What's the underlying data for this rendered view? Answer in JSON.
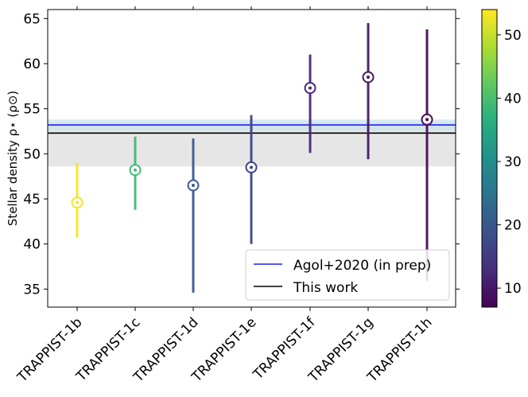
{
  "chart_data": {
    "type": "scatter",
    "title": "",
    "xlabel": "",
    "ylabel": "Stellar density ρ⋆ (ρ⊙)",
    "ylim": [
      33,
      66
    ],
    "yticks": [
      35,
      40,
      45,
      50,
      55,
      60,
      65
    ],
    "categories": [
      "TRAPPIST-1b",
      "TRAPPIST-1c",
      "TRAPPIST-1d",
      "TRAPPIST-1e",
      "TRAPPIST-1f",
      "TRAPPIST-1g",
      "TRAPPIST-1h"
    ],
    "points": [
      {
        "label": "TRAPPIST-1b",
        "y": 44.6,
        "lo": 40.7,
        "hi": 49.0,
        "c": 53,
        "color": "#f5e61f"
      },
      {
        "label": "TRAPPIST-1c",
        "y": 48.2,
        "lo": 43.8,
        "hi": 51.9,
        "c": 36,
        "color": "#3fbc73"
      },
      {
        "label": "TRAPPIST-1d",
        "y": 46.5,
        "lo": 34.6,
        "hi": 51.7,
        "c": 19,
        "color": "#3b5a8f"
      },
      {
        "label": "TRAPPIST-1e",
        "y": 48.5,
        "lo": 40.0,
        "hi": 54.3,
        "c": 17,
        "color": "#3d4486"
      },
      {
        "label": "TRAPPIST-1f",
        "y": 57.3,
        "lo": 50.1,
        "hi": 61.0,
        "c": 12,
        "color": "#482878"
      },
      {
        "label": "TRAPPIST-1g",
        "y": 58.5,
        "lo": 49.4,
        "hi": 64.5,
        "c": 10,
        "color": "#46195f"
      },
      {
        "label": "TRAPPIST-1h",
        "y": 53.8,
        "lo": 35.9,
        "hi": 63.8,
        "c": 8,
        "color": "#440d55"
      }
    ],
    "reference_lines": [
      {
        "name": "Agol+2020 (in prep)",
        "y": 53.2,
        "band": [
          52.6,
          53.8
        ],
        "color": "#2222ee",
        "band_color": "#c9e2ee"
      },
      {
        "name": "This work",
        "y": 52.3,
        "band": [
          48.6,
          53.4
        ],
        "color": "#000000",
        "band_color": "#e6e6e6"
      }
    ],
    "legend": {
      "position": "bottom-right",
      "entries": [
        "Agol+2020 (in prep)",
        "This work"
      ]
    },
    "colorbar": {
      "min": 7,
      "max": 54,
      "ticks": [
        10,
        20,
        30,
        40,
        50
      ],
      "colormap": "viridis"
    }
  }
}
